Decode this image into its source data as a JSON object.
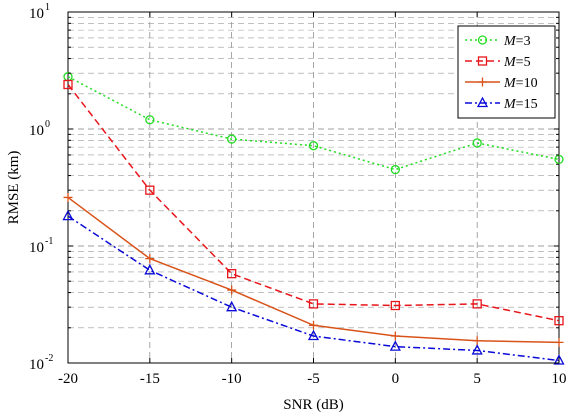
{
  "chart_data": {
    "type": "line",
    "xlabel": "SNR (dB)",
    "ylabel": "RMSE (km)",
    "x": [
      -20,
      -15,
      -10,
      -5,
      0,
      5,
      10
    ],
    "xlim": [
      -20,
      10
    ],
    "ylim": [
      0.01,
      10
    ],
    "yscale": "log",
    "grid": true,
    "legend_position": "top-right",
    "x_ticks": [
      "-20",
      "-15",
      "-10",
      "-5",
      "0",
      "5",
      "10"
    ],
    "y_ticks": [
      {
        "base": "10",
        "exp": "-2",
        "value": 0.01
      },
      {
        "base": "10",
        "exp": "-1",
        "value": 0.1
      },
      {
        "base": "10",
        "exp": "0",
        "value": 1
      },
      {
        "base": "10",
        "exp": "1",
        "value": 10
      }
    ],
    "series": [
      {
        "name": "M=3",
        "name_var": "M",
        "name_val": "=3",
        "color": "#22dd22",
        "dash": "dotted",
        "marker": "circle",
        "values": [
          2.8,
          1.2,
          0.82,
          0.72,
          0.45,
          0.76,
          0.55
        ]
      },
      {
        "name": "M=5",
        "name_var": "M",
        "name_val": "=5",
        "color": "#e8161a",
        "dash": "dashed",
        "marker": "square",
        "values": [
          2.4,
          0.3,
          0.058,
          0.032,
          0.031,
          0.032,
          0.023
        ]
      },
      {
        "name": "M=10",
        "name_var": "M",
        "name_val": "=10",
        "color": "#d95319",
        "dash": "solid",
        "marker": "plus",
        "values": [
          0.26,
          0.078,
          0.042,
          0.021,
          0.017,
          0.0155,
          0.015
        ]
      },
      {
        "name": "M=15",
        "name_var": "M",
        "name_val": "=15",
        "color": "#0a0ad8",
        "dash": "dashdot",
        "marker": "triangle",
        "values": [
          0.18,
          0.062,
          0.03,
          0.017,
          0.0138,
          0.0128,
          0.0105
        ]
      }
    ]
  }
}
